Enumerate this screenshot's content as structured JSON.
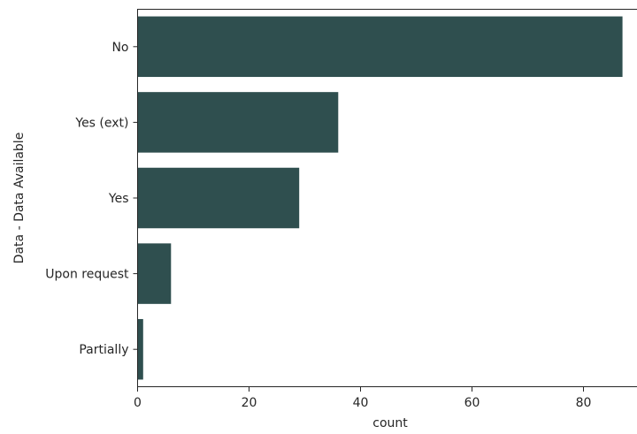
{
  "chart_data": {
    "type": "bar",
    "orientation": "horizontal",
    "categories": [
      "No",
      "Yes (ext)",
      "Yes",
      "Upon request",
      "Partially"
    ],
    "values": [
      87,
      36,
      29,
      6,
      1
    ],
    "xlabel": "count",
    "ylabel": "Data - Data Available",
    "xlim": [
      0,
      90
    ],
    "xticks": [
      0,
      20,
      40,
      60,
      80
    ],
    "xtick_labels": [
      "0",
      "20",
      "40",
      "60",
      "80"
    ],
    "grid": false,
    "bar_color": "#2f4f4f"
  }
}
